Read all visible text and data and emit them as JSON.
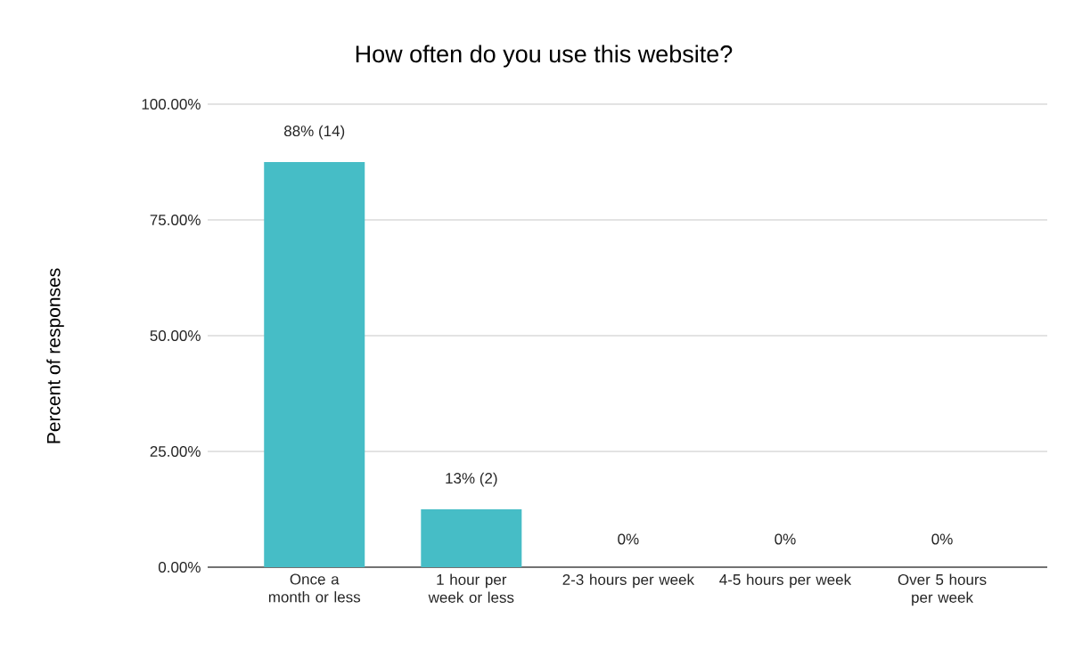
{
  "chart_data": {
    "type": "bar",
    "title": "How often do you use this website?",
    "ylabel": "Percent of responses",
    "categories": [
      "Once a month or less",
      "1 hour per week or less",
      "2-3 hours per week",
      "4-5 hours per week",
      "Over 5 hours per week"
    ],
    "values": [
      87.5,
      12.5,
      0,
      0,
      0
    ],
    "value_labels": [
      "88% (14)",
      "13% (2)",
      "0%",
      "0%",
      "0%"
    ],
    "color": "#46bdc6",
    "ylim": [
      0,
      100
    ],
    "yticks": [
      {
        "value": 0,
        "label": "0.00%"
      },
      {
        "value": 25,
        "label": "25.00%"
      },
      {
        "value": 50,
        "label": "50.00%"
      },
      {
        "value": 75,
        "label": "75.00%"
      },
      {
        "value": 100,
        "label": "100.00%"
      }
    ],
    "grid": "y"
  }
}
